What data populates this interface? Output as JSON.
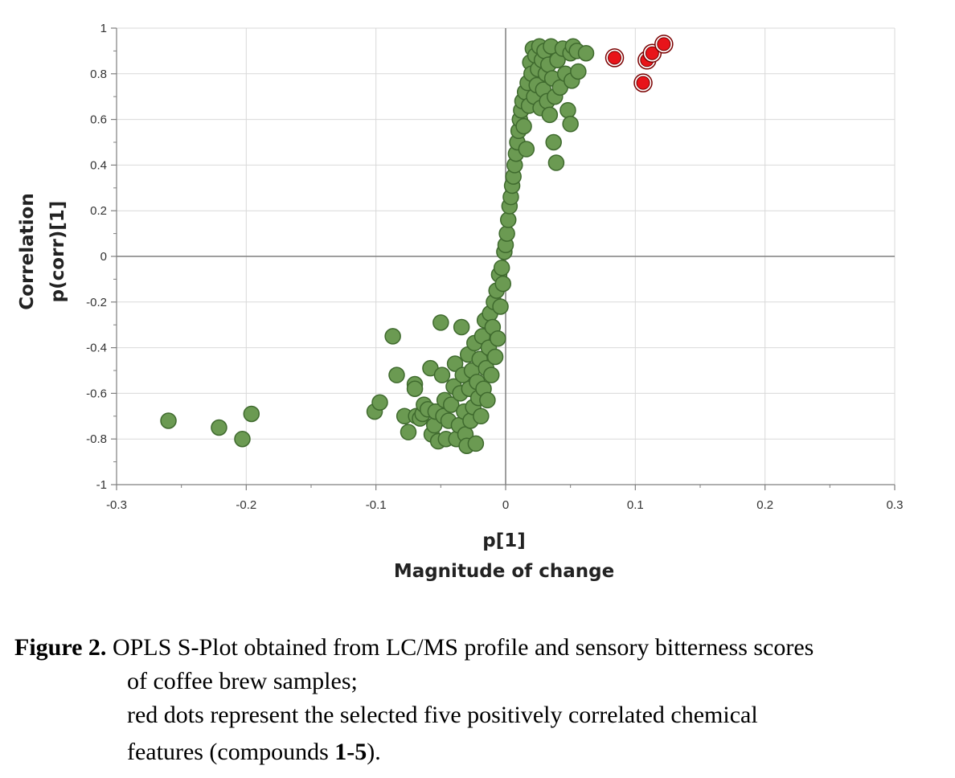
{
  "colors": {
    "green_fill": "#6b9a52",
    "green_stroke": "#3f6a2e",
    "red_fill": "#e8141a",
    "red_stroke": "#7a0000",
    "grid": "#d9d9d9",
    "axis": "#7f7f7f"
  },
  "chart_data": {
    "type": "scatter",
    "title": "",
    "xlabel_line1": "p[1]",
    "xlabel_line2": "Magnitude of change",
    "ylabel_line1": "Correlation",
    "ylabel_line2": "p(corr)[1]",
    "xlim": [
      -0.3,
      0.3
    ],
    "ylim": [
      -1,
      1
    ],
    "xticks": [
      -0.3,
      -0.2,
      -0.1,
      0,
      0.1,
      0.2,
      0.3
    ],
    "xtick_labels": [
      "-0.3",
      "-0.2",
      "-0.1",
      "0",
      "0.1",
      "0.2",
      "0.3"
    ],
    "yticks": [
      1,
      0.8,
      0.6,
      0.4,
      0.2,
      0,
      -0.2,
      -0.4,
      -0.6,
      -0.8,
      -1
    ],
    "ytick_labels": [
      "1",
      "0.8",
      "0.6",
      "0.4",
      "0.2",
      "0",
      "-0.2",
      "-0.4",
      "-0.6",
      "-0.8",
      "-1"
    ],
    "grid": true,
    "series": [
      {
        "name": "features",
        "color": "green",
        "points": [
          [
            -0.26,
            -0.72
          ],
          [
            -0.221,
            -0.75
          ],
          [
            -0.203,
            -0.8
          ],
          [
            -0.196,
            -0.69
          ],
          [
            -0.101,
            -0.68
          ],
          [
            -0.097,
            -0.64
          ],
          [
            -0.087,
            -0.35
          ],
          [
            -0.084,
            -0.52
          ],
          [
            -0.078,
            -0.7
          ],
          [
            -0.075,
            -0.77
          ],
          [
            -0.07,
            -0.56
          ],
          [
            -0.07,
            -0.58
          ],
          [
            -0.069,
            -0.7
          ],
          [
            -0.066,
            -0.71
          ],
          [
            -0.064,
            -0.69
          ],
          [
            -0.063,
            -0.65
          ],
          [
            -0.06,
            -0.67
          ],
          [
            -0.058,
            -0.49
          ],
          [
            -0.057,
            -0.78
          ],
          [
            -0.055,
            -0.74
          ],
          [
            -0.054,
            -0.68
          ],
          [
            -0.052,
            -0.81
          ],
          [
            -0.05,
            -0.29
          ],
          [
            -0.049,
            -0.52
          ],
          [
            -0.048,
            -0.7
          ],
          [
            -0.047,
            -0.63
          ],
          [
            -0.046,
            -0.8
          ],
          [
            -0.044,
            -0.72
          ],
          [
            -0.042,
            -0.65
          ],
          [
            -0.04,
            -0.57
          ],
          [
            -0.039,
            -0.47
          ],
          [
            -0.038,
            -0.8
          ],
          [
            -0.036,
            -0.74
          ],
          [
            -0.035,
            -0.6
          ],
          [
            -0.034,
            -0.31
          ],
          [
            -0.033,
            -0.52
          ],
          [
            -0.032,
            -0.68
          ],
          [
            -0.031,
            -0.78
          ],
          [
            -0.03,
            -0.83
          ],
          [
            -0.029,
            -0.43
          ],
          [
            -0.028,
            -0.58
          ],
          [
            -0.027,
            -0.72
          ],
          [
            -0.026,
            -0.5
          ],
          [
            -0.025,
            -0.66
          ],
          [
            -0.024,
            -0.38
          ],
          [
            -0.023,
            -0.82
          ],
          [
            -0.022,
            -0.55
          ],
          [
            -0.021,
            -0.62
          ],
          [
            -0.02,
            -0.45
          ],
          [
            -0.019,
            -0.7
          ],
          [
            -0.018,
            -0.35
          ],
          [
            -0.017,
            -0.58
          ],
          [
            -0.016,
            -0.28
          ],
          [
            -0.015,
            -0.49
          ],
          [
            -0.014,
            -0.63
          ],
          [
            -0.013,
            -0.4
          ],
          [
            -0.012,
            -0.25
          ],
          [
            -0.011,
            -0.52
          ],
          [
            -0.01,
            -0.31
          ],
          [
            -0.009,
            -0.2
          ],
          [
            -0.008,
            -0.44
          ],
          [
            -0.007,
            -0.15
          ],
          [
            -0.006,
            -0.36
          ],
          [
            -0.005,
            -0.08
          ],
          [
            -0.004,
            -0.22
          ],
          [
            -0.003,
            -0.05
          ],
          [
            -0.002,
            -0.12
          ],
          [
            -0.001,
            0.02
          ],
          [
            0.0,
            0.05
          ],
          [
            0.001,
            0.1
          ],
          [
            0.002,
            0.16
          ],
          [
            0.003,
            0.22
          ],
          [
            0.004,
            0.26
          ],
          [
            0.005,
            0.31
          ],
          [
            0.006,
            0.35
          ],
          [
            0.007,
            0.4
          ],
          [
            0.008,
            0.45
          ],
          [
            0.009,
            0.5
          ],
          [
            0.01,
            0.55
          ],
          [
            0.011,
            0.6
          ],
          [
            0.012,
            0.64
          ],
          [
            0.013,
            0.68
          ],
          [
            0.014,
            0.57
          ],
          [
            0.015,
            0.72
          ],
          [
            0.016,
            0.47
          ],
          [
            0.017,
            0.76
          ],
          [
            0.018,
            0.66
          ],
          [
            0.019,
            0.85
          ],
          [
            0.02,
            0.8
          ],
          [
            0.021,
            0.91
          ],
          [
            0.022,
            0.7
          ],
          [
            0.023,
            0.88
          ],
          [
            0.024,
            0.75
          ],
          [
            0.025,
            0.82
          ],
          [
            0.026,
            0.92
          ],
          [
            0.027,
            0.65
          ],
          [
            0.028,
            0.86
          ],
          [
            0.029,
            0.73
          ],
          [
            0.03,
            0.9
          ],
          [
            0.031,
            0.8
          ],
          [
            0.032,
            0.68
          ],
          [
            0.033,
            0.84
          ],
          [
            0.034,
            0.62
          ],
          [
            0.035,
            0.92
          ],
          [
            0.036,
            0.78
          ],
          [
            0.037,
            0.5
          ],
          [
            0.038,
            0.7
          ],
          [
            0.039,
            0.41
          ],
          [
            0.04,
            0.86
          ],
          [
            0.042,
            0.74
          ],
          [
            0.044,
            0.91
          ],
          [
            0.046,
            0.8
          ],
          [
            0.048,
            0.64
          ],
          [
            0.05,
            0.58
          ],
          [
            0.05,
            0.89
          ],
          [
            0.051,
            0.77
          ],
          [
            0.052,
            0.92
          ],
          [
            0.055,
            0.9
          ],
          [
            0.056,
            0.81
          ],
          [
            0.062,
            0.89
          ]
        ]
      },
      {
        "name": "selected compounds 1-5",
        "color": "red",
        "points": [
          [
            0.084,
            0.87
          ],
          [
            0.106,
            0.76
          ],
          [
            0.109,
            0.86
          ],
          [
            0.113,
            0.89
          ],
          [
            0.122,
            0.93
          ]
        ]
      }
    ]
  },
  "caption": {
    "label": "Figure 2.",
    "line1": "OPLS S-Plot obtained from LC/MS profile and sensory bitterness scores",
    "line2": "of coffee brew samples;",
    "line3": "red dots represent the selected five positively correlated chemical",
    "line4_pre": "features (compounds ",
    "line4_bold": "1-5",
    "line4_post": ")."
  }
}
